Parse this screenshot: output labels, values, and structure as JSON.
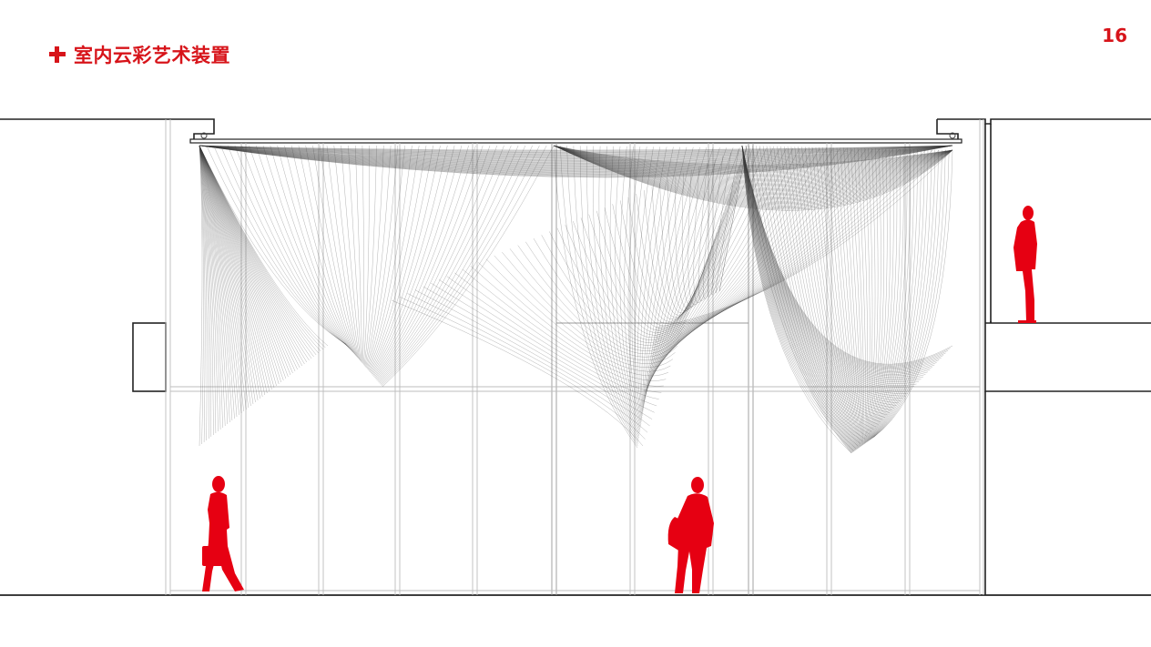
{
  "header": {
    "title": "室内云彩艺术装置",
    "page_number": "16",
    "accent_color": "#d7141a"
  },
  "drawing": {
    "figure_color": "#e60012",
    "line_color": "#222222",
    "mesh_color": "#555555",
    "figures": [
      "standing-man-mezzanine",
      "walking-man-briefcase",
      "walking-man-bag"
    ]
  }
}
